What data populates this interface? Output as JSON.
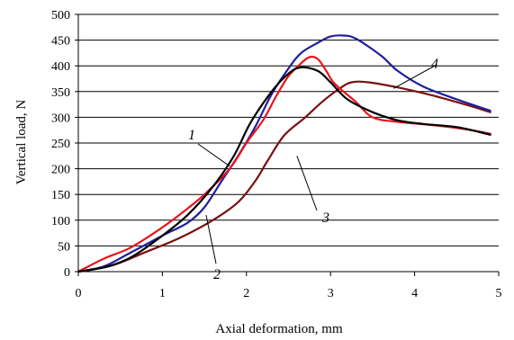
{
  "chart_data": {
    "type": "line",
    "xlabel": "Axial deformation, mm",
    "ylabel": "Vertical load, N",
    "xlim": [
      0,
      5
    ],
    "ylim": [
      0,
      500
    ],
    "x_ticks": [
      0,
      1,
      2,
      3,
      4,
      5
    ],
    "y_ticks": [
      0,
      50,
      100,
      150,
      200,
      250,
      300,
      350,
      400,
      450,
      500
    ],
    "grid": "horizontal",
    "legend": "none",
    "series": [
      {
        "name": "1",
        "color": "#000000",
        "points": [
          [
            0,
            0
          ],
          [
            0.35,
            10
          ],
          [
            0.65,
            30
          ],
          [
            1.0,
            70
          ],
          [
            1.3,
            110
          ],
          [
            1.6,
            165
          ],
          [
            1.85,
            225
          ],
          [
            2.05,
            290
          ],
          [
            2.3,
            350
          ],
          [
            2.5,
            385
          ],
          [
            2.65,
            397
          ],
          [
            2.85,
            390
          ],
          [
            3.0,
            368
          ],
          [
            3.2,
            335
          ],
          [
            3.5,
            310
          ],
          [
            3.8,
            294
          ],
          [
            4.1,
            287
          ],
          [
            4.5,
            281
          ],
          [
            4.9,
            266
          ]
        ]
      },
      {
        "name": "2",
        "color": "#1f1f9e",
        "points": [
          [
            0,
            0
          ],
          [
            0.3,
            10
          ],
          [
            0.6,
            35
          ],
          [
            1.0,
            70
          ],
          [
            1.3,
            95
          ],
          [
            1.5,
            125
          ],
          [
            1.7,
            175
          ],
          [
            1.9,
            225
          ],
          [
            2.1,
            280
          ],
          [
            2.3,
            345
          ],
          [
            2.5,
            395
          ],
          [
            2.65,
            425
          ],
          [
            2.85,
            445
          ],
          [
            3.0,
            457
          ],
          [
            3.15,
            459
          ],
          [
            3.3,
            453
          ],
          [
            3.6,
            420
          ],
          [
            3.8,
            390
          ],
          [
            4.1,
            360
          ],
          [
            4.5,
            335
          ],
          [
            4.9,
            313
          ]
        ]
      },
      {
        "name": "3",
        "color": "#e8141c",
        "points": [
          [
            0,
            0
          ],
          [
            0.3,
            25
          ],
          [
            0.6,
            45
          ],
          [
            0.9,
            75
          ],
          [
            1.2,
            110
          ],
          [
            1.5,
            150
          ],
          [
            1.8,
            200
          ],
          [
            2.0,
            250
          ],
          [
            2.2,
            295
          ],
          [
            2.35,
            340
          ],
          [
            2.5,
            380
          ],
          [
            2.65,
            405
          ],
          [
            2.75,
            417
          ],
          [
            2.85,
            413
          ],
          [
            2.95,
            390
          ],
          [
            3.05,
            365
          ],
          [
            3.3,
            330
          ],
          [
            3.5,
            300
          ],
          [
            3.8,
            291
          ],
          [
            4.2,
            285
          ],
          [
            4.6,
            277
          ],
          [
            4.9,
            268
          ]
        ]
      },
      {
        "name": "4",
        "color": "#7a1010",
        "points": [
          [
            0,
            0
          ],
          [
            0.4,
            12
          ],
          [
            0.8,
            38
          ],
          [
            1.2,
            65
          ],
          [
            1.6,
            100
          ],
          [
            1.9,
            135
          ],
          [
            2.1,
            175
          ],
          [
            2.25,
            215
          ],
          [
            2.45,
            265
          ],
          [
            2.7,
            300
          ],
          [
            2.9,
            330
          ],
          [
            3.1,
            355
          ],
          [
            3.25,
            368
          ],
          [
            3.45,
            368
          ],
          [
            3.8,
            358
          ],
          [
            4.2,
            343
          ],
          [
            4.6,
            325
          ],
          [
            4.9,
            310
          ]
        ]
      }
    ],
    "annotations": [
      {
        "text": "1",
        "target": [
          1.8,
          205
        ]
      },
      {
        "text": "2",
        "target": [
          1.52,
          110
        ]
      },
      {
        "text": "3",
        "target": [
          2.6,
          225
        ]
      },
      {
        "text": "4",
        "target": [
          3.75,
          356
        ]
      }
    ]
  }
}
